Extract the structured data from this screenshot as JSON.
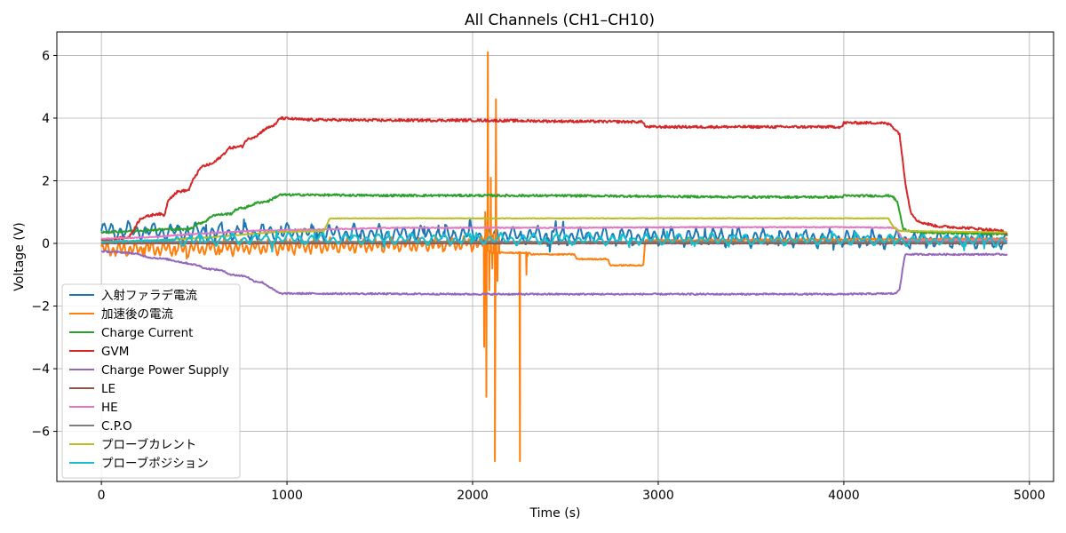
{
  "chart_data": {
    "type": "line",
    "title": "All Channels (CH1–CH10)",
    "xlabel": "Time (s)",
    "ylabel": "Voltage (V)",
    "xlim": [
      -240,
      5130
    ],
    "ylim": [
      -7.6,
      6.75
    ],
    "xticks": [
      0,
      1000,
      2000,
      3000,
      4000,
      5000
    ],
    "xtick_labels": [
      "0",
      "1000",
      "2000",
      "3000",
      "4000",
      "5000"
    ],
    "yticks": [
      -6,
      -4,
      -2,
      0,
      2,
      4,
      6
    ],
    "ytick_labels": [
      "−6",
      "−4",
      "−2",
      "0",
      "2",
      "4",
      "6"
    ],
    "grid": true,
    "legend_position": "lower-left",
    "series": [
      {
        "name": "入射ファラデ電流",
        "color": "#1f77b4",
        "style": "oscillating",
        "base": [
          [
            0,
            0.4
          ],
          [
            4880,
            0.1
          ]
        ],
        "noise_amplitude": 0.35,
        "noise_period": 45
      },
      {
        "name": "加速後の電流",
        "color": "#ff7f0e",
        "style": "oscillating",
        "base": [
          [
            0,
            -0.2
          ],
          [
            1700,
            -0.05
          ],
          [
            2040,
            0.0
          ],
          [
            2100,
            -0.3
          ],
          [
            2300,
            -0.3
          ],
          [
            2320,
            -0.35
          ],
          [
            2550,
            -0.35
          ],
          [
            2560,
            -0.5
          ],
          [
            2730,
            -0.5
          ],
          [
            2740,
            -0.7
          ],
          [
            2920,
            -0.7
          ],
          [
            2930,
            0.1
          ],
          [
            4880,
            0.15
          ]
        ],
        "noise_amplitude": 0.3,
        "noise_period": 30,
        "noise_until": 2040,
        "spikes": [
          [
            2050,
            0.2
          ],
          [
            2062,
            -3.3
          ],
          [
            2068,
            1.0
          ],
          [
            2074,
            -4.9
          ],
          [
            2082,
            6.1
          ],
          [
            2090,
            -1.5
          ],
          [
            2098,
            2.1
          ],
          [
            2106,
            -0.8
          ],
          [
            2112,
            0.3
          ],
          [
            2120,
            -6.95
          ],
          [
            2126,
            4.6
          ],
          [
            2134,
            -1.2
          ],
          [
            2142,
            0.2
          ],
          [
            2255,
            -6.95
          ],
          [
            2262,
            -0.3
          ],
          [
            2285,
            -0.3
          ],
          [
            2290,
            -1.0
          ],
          [
            2296,
            -0.4
          ]
        ]
      },
      {
        "name": "Charge Current",
        "color": "#2ca02c",
        "style": "steps",
        "points": [
          [
            0,
            0.35
          ],
          [
            170,
            0.4
          ],
          [
            340,
            0.45
          ],
          [
            470,
            0.45
          ],
          [
            530,
            0.65
          ],
          [
            560,
            0.7
          ],
          [
            600,
            0.9
          ],
          [
            700,
            0.95
          ],
          [
            730,
            1.1
          ],
          [
            780,
            1.15
          ],
          [
            840,
            1.3
          ],
          [
            900,
            1.35
          ],
          [
            960,
            1.55
          ],
          [
            1100,
            1.55
          ],
          [
            1500,
            1.53
          ],
          [
            2000,
            1.53
          ],
          [
            2600,
            1.52
          ],
          [
            3000,
            1.5
          ],
          [
            3500,
            1.48
          ],
          [
            3990,
            1.48
          ],
          [
            4000,
            1.52
          ],
          [
            4260,
            1.52
          ],
          [
            4290,
            1.3
          ],
          [
            4320,
            0.45
          ],
          [
            4400,
            0.35
          ],
          [
            4880,
            0.3
          ]
        ],
        "noise_amplitude": 0.035
      },
      {
        "name": "GVM",
        "color": "#d62728",
        "style": "steps",
        "points": [
          [
            0,
            0.1
          ],
          [
            150,
            0.2
          ],
          [
            210,
            0.8
          ],
          [
            300,
            0.95
          ],
          [
            340,
            0.9
          ],
          [
            360,
            1.4
          ],
          [
            410,
            1.65
          ],
          [
            470,
            1.7
          ],
          [
            500,
            2.1
          ],
          [
            540,
            2.45
          ],
          [
            600,
            2.55
          ],
          [
            650,
            2.8
          ],
          [
            690,
            3.05
          ],
          [
            760,
            3.1
          ],
          [
            780,
            3.3
          ],
          [
            840,
            3.45
          ],
          [
            880,
            3.65
          ],
          [
            940,
            3.8
          ],
          [
            960,
            4.0
          ],
          [
            1100,
            3.95
          ],
          [
            1500,
            3.93
          ],
          [
            2000,
            3.93
          ],
          [
            2500,
            3.9
          ],
          [
            2920,
            3.88
          ],
          [
            2930,
            3.72
          ],
          [
            3500,
            3.72
          ],
          [
            3990,
            3.72
          ],
          [
            4000,
            3.85
          ],
          [
            4200,
            3.85
          ],
          [
            4250,
            3.8
          ],
          [
            4300,
            3.5
          ],
          [
            4330,
            2.0
          ],
          [
            4360,
            1.0
          ],
          [
            4400,
            0.7
          ],
          [
            4500,
            0.55
          ],
          [
            4700,
            0.48
          ],
          [
            4850,
            0.4
          ],
          [
            4880,
            0.3
          ]
        ],
        "noise_amplitude": 0.04
      },
      {
        "name": "Charge Power Supply",
        "color": "#9467bd",
        "style": "steps",
        "points": [
          [
            0,
            -0.25
          ],
          [
            150,
            -0.3
          ],
          [
            200,
            -0.35
          ],
          [
            260,
            -0.45
          ],
          [
            350,
            -0.5
          ],
          [
            430,
            -0.6
          ],
          [
            520,
            -0.7
          ],
          [
            560,
            -0.8
          ],
          [
            640,
            -0.85
          ],
          [
            700,
            -1.0
          ],
          [
            780,
            -1.05
          ],
          [
            820,
            -1.2
          ],
          [
            870,
            -1.25
          ],
          [
            920,
            -1.45
          ],
          [
            960,
            -1.6
          ],
          [
            1100,
            -1.6
          ],
          [
            2000,
            -1.62
          ],
          [
            3000,
            -1.62
          ],
          [
            4000,
            -1.62
          ],
          [
            4280,
            -1.6
          ],
          [
            4300,
            -1.45
          ],
          [
            4330,
            -0.35
          ],
          [
            4880,
            -0.35
          ]
        ],
        "noise_amplitude": 0.025
      },
      {
        "name": "LE",
        "color": "#8c564b",
        "style": "steps",
        "points": [
          [
            0,
            0.0
          ],
          [
            4880,
            0.0
          ]
        ],
        "noise_amplitude": 0.01
      },
      {
        "name": "HE",
        "color": "#e377c2",
        "style": "steps",
        "points": [
          [
            0,
            0.15
          ],
          [
            260,
            0.2
          ],
          [
            500,
            0.3
          ],
          [
            800,
            0.4
          ],
          [
            1200,
            0.45
          ],
          [
            1600,
            0.5
          ],
          [
            2000,
            0.5
          ],
          [
            2600,
            0.5
          ],
          [
            3200,
            0.52
          ],
          [
            4000,
            0.52
          ],
          [
            4280,
            0.5
          ],
          [
            4320,
            0.1
          ],
          [
            4880,
            0.1
          ]
        ],
        "noise_amplitude": 0.015
      },
      {
        "name": "C.P.O",
        "color": "#7f7f7f",
        "style": "steps",
        "points": [
          [
            0,
            0.05
          ],
          [
            4880,
            0.05
          ]
        ],
        "noise_amplitude": 0.01
      },
      {
        "name": "プローブカレント",
        "color": "#bcbd22",
        "style": "steps",
        "points": [
          [
            0,
            0.05
          ],
          [
            300,
            0.1
          ],
          [
            600,
            0.2
          ],
          [
            900,
            0.35
          ],
          [
            1200,
            0.4
          ],
          [
            1230,
            0.8
          ],
          [
            4240,
            0.8
          ],
          [
            4270,
            0.5
          ],
          [
            4300,
            0.4
          ],
          [
            4880,
            0.35
          ]
        ],
        "noise_amplitude": 0.01
      },
      {
        "name": "プローブポジション",
        "color": "#17becf",
        "style": "oscillating",
        "base": [
          [
            0,
            0.05
          ],
          [
            300,
            0.1
          ],
          [
            900,
            0.15
          ],
          [
            4880,
            0.1
          ]
        ],
        "noise_amplitude": 0.22,
        "noise_period": 60,
        "noise_from": 400
      }
    ]
  }
}
